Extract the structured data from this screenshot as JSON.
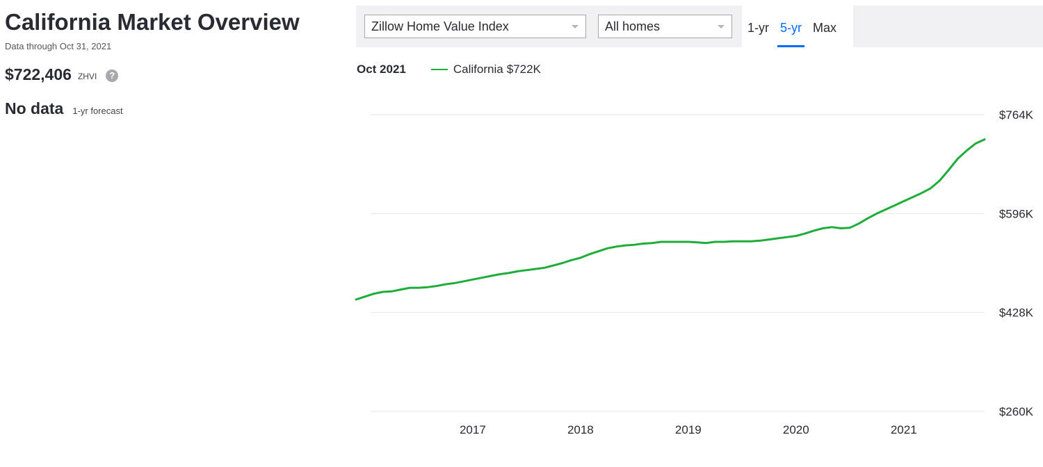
{
  "header": {
    "title": "California Market Overview",
    "subtitle": "Data through Oct 31, 2021",
    "value": "$722,406",
    "value_unit": "ZHVI",
    "help_icon": "?",
    "forecast": "No data",
    "forecast_label": "1-yr forecast"
  },
  "controls": {
    "metric": "Zillow Home Value Index",
    "home_type": "All homes",
    "ranges": [
      {
        "label": "1-yr"
      },
      {
        "label": "5-yr",
        "selected": true
      },
      {
        "label": "Max"
      }
    ]
  },
  "chart_data": {
    "type": "line",
    "legend_date": "Oct 2021",
    "legend_value": "$722K",
    "categories": [
      null,
      null,
      null,
      null,
      null,
      null,
      null,
      null,
      null,
      null,
      null,
      null,
      null,
      "2017",
      null,
      null,
      null,
      null,
      null,
      null,
      null,
      null,
      null,
      null,
      null,
      "2018",
      null,
      null,
      null,
      null,
      null,
      null,
      null,
      null,
      null,
      null,
      null,
      "2019",
      null,
      null,
      null,
      null,
      null,
      null,
      null,
      null,
      null,
      null,
      null,
      "2020",
      null,
      null,
      null,
      null,
      null,
      null,
      null,
      null,
      null,
      null,
      null,
      "2021",
      null,
      null,
      null,
      null,
      null,
      null,
      null,
      null,
      null
    ],
    "series": [
      {
        "name": "California",
        "color": "#1fac3a",
        "values": [
          450000,
          455000,
          460000,
          463000,
          464000,
          467000,
          470000,
          470000,
          471000,
          473000,
          476000,
          478000,
          481000,
          484000,
          487000,
          490000,
          493000,
          495000,
          498000,
          500000,
          502000,
          504000,
          508000,
          512000,
          517000,
          521000,
          527000,
          532000,
          537000,
          540000,
          542000,
          543000,
          545000,
          546000,
          548000,
          548000,
          548000,
          548000,
          547000,
          546000,
          548000,
          548000,
          549000,
          549000,
          549000,
          550000,
          552000,
          554000,
          556000,
          558000,
          562000,
          567000,
          571000,
          573000,
          571000,
          572000,
          579000,
          588000,
          596000,
          603000,
          610000,
          617000,
          624000,
          631000,
          639000,
          652000,
          670000,
          689000,
          703000,
          715000,
          722000
        ]
      }
    ],
    "ylim": [
      260000,
      764000
    ],
    "yticks": [
      {
        "value": 260000,
        "label": "$260K"
      },
      {
        "value": 428000,
        "label": "$428K"
      },
      {
        "value": 596000,
        "label": "$596K"
      },
      {
        "value": 764000,
        "label": "$764K"
      }
    ],
    "grid": true
  }
}
